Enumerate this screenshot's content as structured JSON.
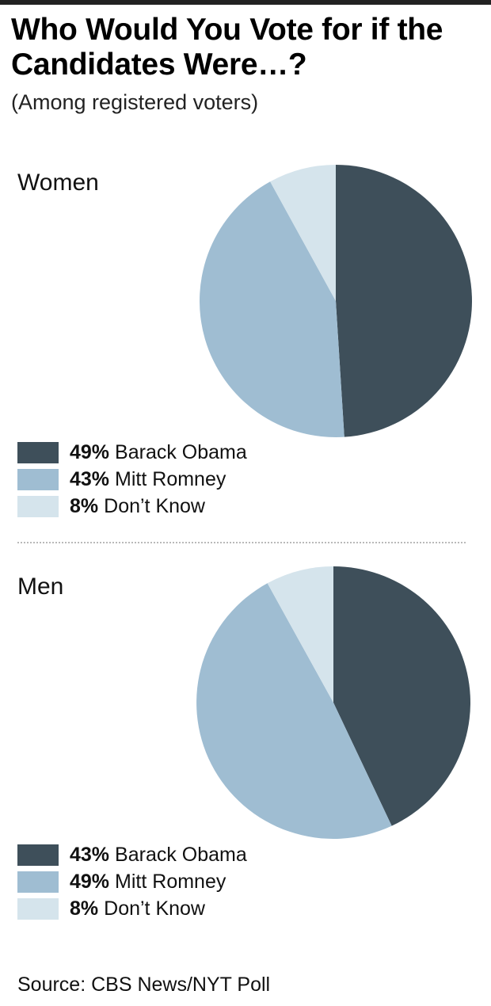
{
  "title": "Who Would You Vote for if the Candidates Were…?",
  "subtitle": "(Among registered voters)",
  "source": "Source: CBS News/NYT Poll",
  "colors": {
    "obama": "#3e4f5a",
    "romney": "#9fbdd2",
    "dont_know": "#d5e4ec"
  },
  "chart_data": [
    {
      "type": "pie",
      "title": "Women",
      "slices": [
        {
          "label": "Barack Obama",
          "pct_label": "49%",
          "value": 49,
          "color": "#3e4f5a"
        },
        {
          "label": "Mitt Romney",
          "pct_label": "43%",
          "value": 43,
          "color": "#9fbdd2"
        },
        {
          "label": "Don’t Know",
          "pct_label": "8%",
          "value": 8,
          "color": "#d5e4ec"
        }
      ]
    },
    {
      "type": "pie",
      "title": "Men",
      "slices": [
        {
          "label": "Barack Obama",
          "pct_label": "43%",
          "value": 43,
          "color": "#3e4f5a"
        },
        {
          "label": "Mitt Romney",
          "pct_label": "49%",
          "value": 49,
          "color": "#9fbdd2"
        },
        {
          "label": "Don’t Know",
          "pct_label": "8%",
          "value": 8,
          "color": "#d5e4ec"
        }
      ]
    }
  ]
}
